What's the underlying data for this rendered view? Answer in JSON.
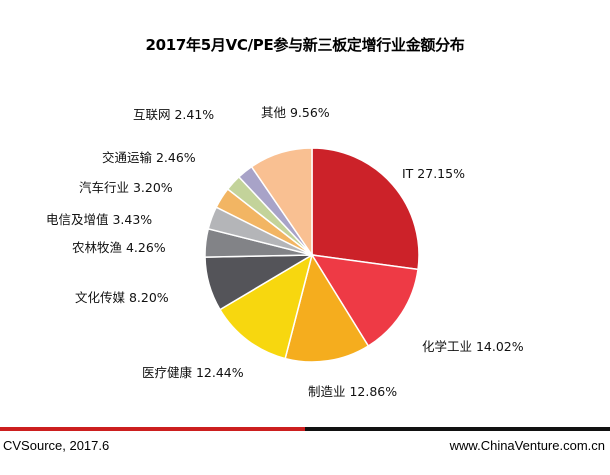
{
  "chart_data": {
    "type": "pie",
    "title": "2017年5月VC/PE参与新三板定增行业金额分布",
    "slices": [
      {
        "name": "IT",
        "value": 27.15,
        "label": "IT 27.15%",
        "color": "#cc2229"
      },
      {
        "name": "化学工业",
        "value": 14.02,
        "label": "化学工业 14.02%",
        "color": "#ee3a45"
      },
      {
        "name": "制造业",
        "value": 12.86,
        "label": "制造业 12.86%",
        "color": "#f5ad1e"
      },
      {
        "name": "医疗健康",
        "value": 12.44,
        "label": "医疗健康 12.44%",
        "color": "#f7d70f"
      },
      {
        "name": "文化传媒",
        "value": 8.2,
        "label": "文化传媒 8.20%",
        "color": "#545459"
      },
      {
        "name": "农林牧渔",
        "value": 4.26,
        "label": "农林牧渔 4.26%",
        "color": "#828387"
      },
      {
        "name": "电信及增值",
        "value": 3.43,
        "label": "电信及增值 3.43%",
        "color": "#b4b5b8"
      },
      {
        "name": "汽车行业",
        "value": 3.2,
        "label": "汽车行业 3.20%",
        "color": "#f2b563"
      },
      {
        "name": "交通运输",
        "value": 2.46,
        "label": "交通运输 2.46%",
        "color": "#c3d39a"
      },
      {
        "name": "互联网",
        "value": 2.41,
        "label": "互联网 2.41%",
        "color": "#a8a3c8"
      },
      {
        "name": "其他",
        "value": 9.56,
        "label": "其他 9.56%",
        "color": "#f9c092"
      }
    ]
  },
  "footer": {
    "source": "CVSource, 2017.6",
    "website": "www.ChinaVenture.com.cn"
  }
}
